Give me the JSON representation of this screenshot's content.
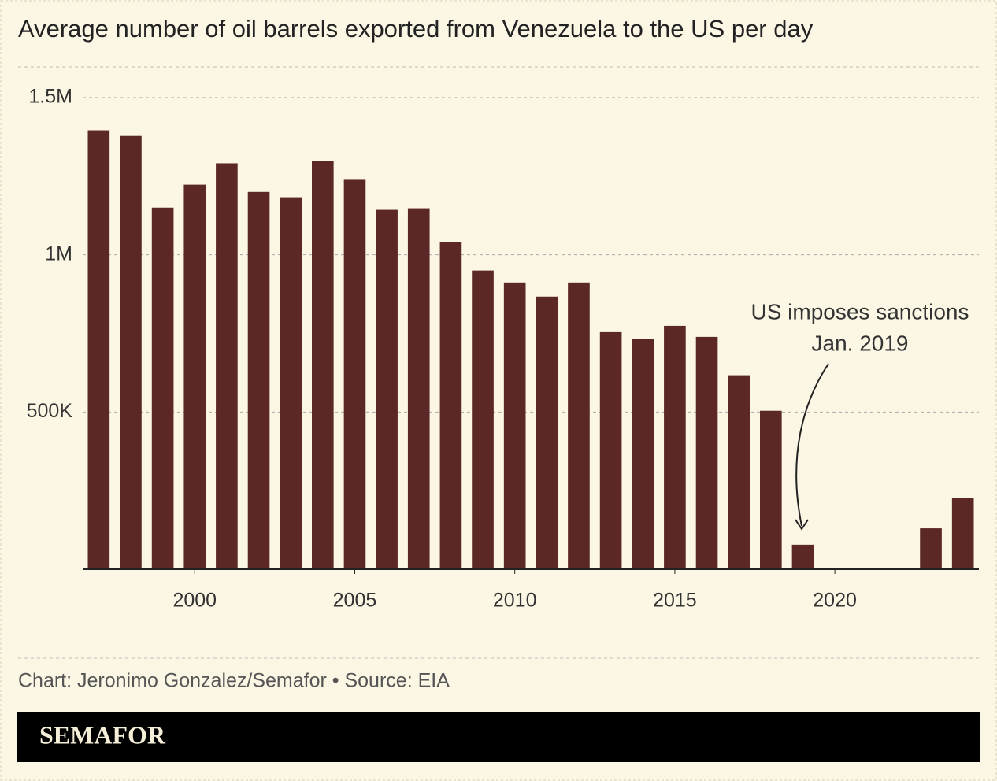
{
  "chart_data": {
    "type": "bar",
    "title": "Average number of oil barrels exported from Venezuela to the US per day",
    "x": [
      1997,
      1998,
      1999,
      2000,
      2001,
      2002,
      2003,
      2004,
      2005,
      2006,
      2007,
      2008,
      2009,
      2010,
      2011,
      2012,
      2013,
      2014,
      2015,
      2016,
      2017,
      2018,
      2019,
      2020,
      2021,
      2022,
      2023,
      2024
    ],
    "series": [
      {
        "color": "#5c2727",
        "values": [
          1396000,
          1378000,
          1150000,
          1223000,
          1291000,
          1200000,
          1183000,
          1298000,
          1241000,
          1143000,
          1148000,
          1040000,
          950000,
          912000,
          867000,
          912000,
          754000,
          732000,
          774000,
          739000,
          617000,
          504000,
          78000,
          0,
          0,
          0,
          130000,
          226000
        ]
      }
    ],
    "xlim": [
      1996.5,
      2024.5
    ],
    "xticks": [
      2000,
      2005,
      2010,
      2015,
      2020
    ],
    "ylim": [
      0,
      1500000
    ],
    "yticks": [
      {
        "value": 500000,
        "label": "500K"
      },
      {
        "value": 1000000,
        "label": "1M"
      },
      {
        "value": 1500000,
        "label": "1.5M"
      }
    ],
    "grid": true,
    "annotation": [
      "US imposes sanctions",
      "Jan. 2019"
    ],
    "source": "Chart: Jeronimo Gonzalez/Semafor • Source: EIA",
    "brand": "SEMAFOR"
  }
}
